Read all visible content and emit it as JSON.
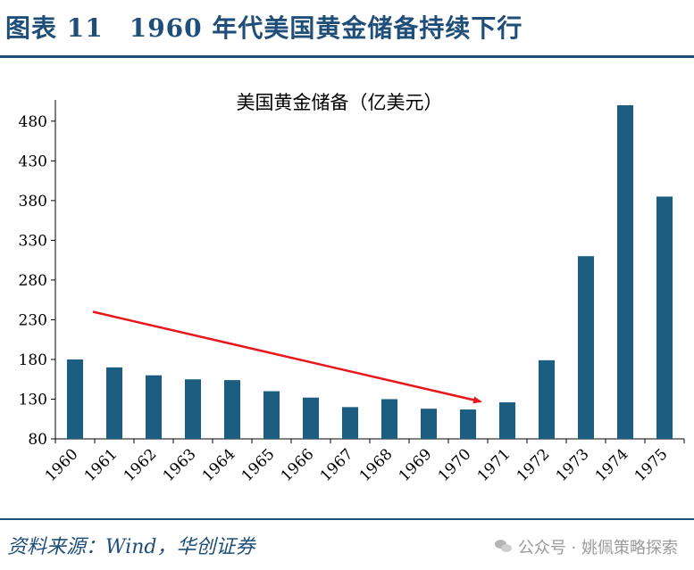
{
  "header": {
    "title": "图表 11　1960 年代美国黄金储备持续下行"
  },
  "footer": {
    "source": "资料来源：Wind，华创证券"
  },
  "watermark": {
    "text": "公众号 · 姚佩策略探索",
    "icon": "wechat-icon"
  },
  "colors": {
    "bar": "#1b5e82",
    "arrow": "#e8151b",
    "accent": "#1f4e79"
  },
  "chart_data": {
    "type": "bar",
    "title": "美国黄金储备（亿美元）",
    "categories": [
      "1960",
      "1961",
      "1962",
      "1963",
      "1964",
      "1965",
      "1966",
      "1967",
      "1968",
      "1969",
      "1970",
      "1971",
      "1972",
      "1973",
      "1974",
      "1975"
    ],
    "series": [
      {
        "values": [
          180,
          170,
          160,
          155,
          154,
          140,
          132,
          120,
          130,
          118,
          117,
          126,
          179,
          310,
          500,
          385
        ]
      }
    ],
    "ylim": [
      80,
      500
    ],
    "yticks": [
      80,
      130,
      180,
      230,
      280,
      330,
      380,
      430,
      480
    ],
    "grid": false,
    "annotation": {
      "type": "arrow",
      "from": {
        "x": "1960",
        "y": 240
      },
      "to": {
        "x": "1970",
        "y": 127
      }
    }
  }
}
